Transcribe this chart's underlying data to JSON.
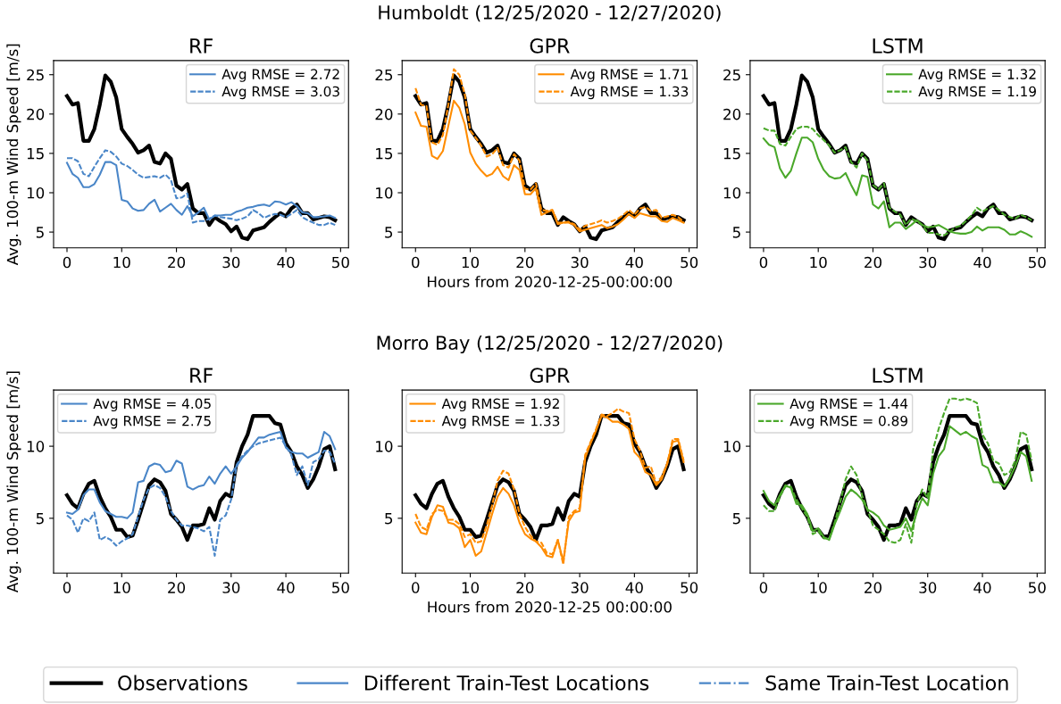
{
  "chart_data": [
    {
      "type": "line",
      "title": "RF",
      "ylabel": "Avg. 100-m Wind Speed [m/s]",
      "legend": "top right",
      "xlim": [
        -2.45,
        51.45
      ],
      "xticks": [
        0,
        10,
        20,
        30,
        40,
        50
      ],
      "ylim": [
        3.0,
        26.8
      ],
      "yticks": [
        5,
        10,
        15,
        20,
        25
      ],
      "x": [
        0,
        1,
        2,
        3,
        4,
        5,
        6,
        7,
        8,
        9,
        10,
        11,
        12,
        13,
        14,
        15,
        16,
        17,
        18,
        19,
        20,
        21,
        22,
        23,
        24,
        25,
        26,
        27,
        28,
        29,
        30,
        31,
        32,
        33,
        34,
        35,
        36,
        37,
        38,
        39,
        40,
        41,
        42,
        43,
        44,
        45,
        46,
        47,
        48,
        49
      ],
      "series": [
        {
          "color": "#000000",
          "line_style": "solid",
          "values": [
            22.3,
            21.2,
            21.4,
            16.6,
            16.6,
            18.1,
            21.2,
            24.9,
            24.1,
            22.1,
            18.1,
            17.1,
            16.2,
            15.1,
            15.4,
            16.0,
            13.9,
            13.7,
            15.0,
            14.3,
            10.9,
            10.4,
            11.1,
            8.0,
            7.4,
            7.4,
            5.9,
            6.9,
            6.4,
            6.0,
            5.1,
            5.7,
            4.3,
            4.1,
            5.2,
            5.4,
            5.6,
            6.3,
            6.9,
            7.4,
            7.0,
            8.0,
            8.5,
            7.4,
            7.4,
            6.6,
            6.8,
            7.0,
            6.9,
            6.5
          ]
        },
        {
          "name": "Avg RMSE = 2.72",
          "color": "#4a86c8",
          "line_style": "solid",
          "values": [
            13.8,
            12.4,
            11.9,
            10.7,
            10.7,
            11.1,
            12.3,
            13.9,
            13.9,
            13.5,
            9.1,
            8.9,
            8.0,
            7.7,
            7.8,
            8.6,
            9.1,
            7.6,
            8.1,
            8.6,
            7.8,
            7.2,
            8.3,
            7.0,
            7.5,
            8.1,
            6.6,
            7.1,
            7.1,
            7.2,
            7.2,
            7.6,
            7.8,
            8.1,
            8.2,
            8.4,
            8.5,
            8.3,
            8.9,
            8.8,
            8.5,
            8.8,
            8.3,
            7.5,
            7.4,
            6.9,
            6.9,
            7.0,
            7.1,
            6.8
          ]
        },
        {
          "name": "Avg RMSE = 3.03",
          "color": "#4a86c8",
          "line_style": "dashed",
          "values": [
            14.4,
            14.4,
            14.0,
            12.4,
            12.1,
            13.3,
            14.4,
            15.4,
            15.2,
            14.6,
            13.7,
            13.4,
            12.9,
            12.3,
            11.9,
            12.0,
            12.1,
            11.9,
            12.3,
            11.6,
            9.3,
            9.4,
            9.9,
            6.2,
            6.4,
            6.4,
            6.7,
            7.1,
            6.9,
            6.8,
            6.7,
            6.5,
            6.7,
            7.0,
            7.8,
            7.4,
            6.8,
            7.1,
            7.3,
            7.2,
            6.9,
            7.3,
            7.8,
            6.9,
            6.5,
            6.2,
            5.9,
            5.9,
            6.2,
            5.9
          ]
        }
      ]
    },
    {
      "type": "line",
      "title": "GPR",
      "subtitle": "Humboldt (12/25/2020 - 12/27/2020)",
      "xlabel": "Hours from 2020-12-25-00:00:00",
      "legend": "top right",
      "xlim": [
        -2.45,
        51.45
      ],
      "xticks": [
        0,
        10,
        20,
        30,
        40,
        50
      ],
      "ylim": [
        3.0,
        26.8
      ],
      "yticks": [
        5,
        10,
        15,
        20,
        25
      ],
      "x": [
        0,
        1,
        2,
        3,
        4,
        5,
        6,
        7,
        8,
        9,
        10,
        11,
        12,
        13,
        14,
        15,
        16,
        17,
        18,
        19,
        20,
        21,
        22,
        23,
        24,
        25,
        26,
        27,
        28,
        29,
        30,
        31,
        32,
        33,
        34,
        35,
        36,
        37,
        38,
        39,
        40,
        41,
        42,
        43,
        44,
        45,
        46,
        47,
        48,
        49
      ],
      "series": [
        {
          "color": "#000000",
          "line_style": "solid",
          "values": [
            22.3,
            21.2,
            21.4,
            16.6,
            16.6,
            18.1,
            21.2,
            24.9,
            24.1,
            22.1,
            18.1,
            17.1,
            16.2,
            15.1,
            15.4,
            16.0,
            13.9,
            13.7,
            15.0,
            14.3,
            10.9,
            10.4,
            11.1,
            8.0,
            7.4,
            7.4,
            5.9,
            6.9,
            6.4,
            6.0,
            5.1,
            5.7,
            4.3,
            4.1,
            5.2,
            5.4,
            5.6,
            6.3,
            6.9,
            7.4,
            7.0,
            8.0,
            8.5,
            7.4,
            7.4,
            6.6,
            6.8,
            7.0,
            6.9,
            6.5
          ]
        },
        {
          "name": "Avg RMSE = 1.71",
          "color": "#ff8c00",
          "line_style": "solid",
          "values": [
            20.2,
            18.5,
            18.4,
            14.7,
            14.3,
            15.3,
            18.5,
            21.7,
            20.8,
            18.7,
            15.1,
            13.7,
            12.8,
            12.1,
            12.4,
            13.3,
            12.1,
            11.6,
            13.5,
            12.9,
            9.8,
            9.8,
            10.6,
            7.2,
            7.5,
            7.8,
            6.0,
            6.2,
            6.2,
            5.9,
            5.1,
            5.3,
            5.5,
            5.7,
            5.9,
            5.5,
            5.7,
            6.0,
            6.6,
            7.3,
            6.8,
            7.4,
            7.2,
            7.0,
            7.0,
            6.4,
            6.3,
            6.8,
            6.5,
            6.2
          ]
        },
        {
          "name": "Avg RMSE = 1.33",
          "color": "#ff8c00",
          "line_style": "dashed",
          "values": [
            23.3,
            21.2,
            21.0,
            16.4,
            16.1,
            17.3,
            21.2,
            25.7,
            25.0,
            22.5,
            17.9,
            17.0,
            16.0,
            14.6,
            14.9,
            15.7,
            13.5,
            13.2,
            14.9,
            14.1,
            10.5,
            10.4,
            11.2,
            7.8,
            7.7,
            7.8,
            6.2,
            6.2,
            6.3,
            6.0,
            5.3,
            5.8,
            6.0,
            6.2,
            6.5,
            6.2,
            6.4,
            6.7,
            7.2,
            7.8,
            7.2,
            8.0,
            8.2,
            7.7,
            7.8,
            6.8,
            7.0,
            7.2,
            6.9,
            6.3
          ]
        }
      ]
    },
    {
      "type": "line",
      "title": "LSTM",
      "legend": "top right",
      "xlim": [
        -2.45,
        51.45
      ],
      "xticks": [
        0,
        10,
        20,
        30,
        40,
        50
      ],
      "ylim": [
        3.0,
        26.8
      ],
      "yticks": [
        5,
        10,
        15,
        20,
        25
      ],
      "x": [
        0,
        1,
        2,
        3,
        4,
        5,
        6,
        7,
        8,
        9,
        10,
        11,
        12,
        13,
        14,
        15,
        16,
        17,
        18,
        19,
        20,
        21,
        22,
        23,
        24,
        25,
        26,
        27,
        28,
        29,
        30,
        31,
        32,
        33,
        34,
        35,
        36,
        37,
        38,
        39,
        40,
        41,
        42,
        43,
        44,
        45,
        46,
        47,
        48,
        49
      ],
      "series": [
        {
          "color": "#000000",
          "line_style": "solid",
          "values": [
            22.3,
            21.2,
            21.4,
            16.6,
            16.6,
            18.1,
            21.2,
            24.9,
            24.1,
            22.1,
            18.1,
            17.1,
            16.2,
            15.1,
            15.4,
            16.0,
            13.9,
            13.7,
            15.0,
            14.3,
            10.9,
            10.4,
            11.1,
            8.0,
            7.4,
            7.4,
            5.9,
            6.9,
            6.4,
            6.0,
            5.1,
            5.7,
            4.3,
            4.1,
            5.2,
            5.4,
            5.6,
            6.3,
            6.9,
            7.4,
            7.0,
            8.0,
            8.5,
            7.4,
            7.4,
            6.6,
            6.8,
            7.0,
            6.9,
            6.5
          ]
        },
        {
          "name": "Avg RMSE = 1.32",
          "color": "#4aa82a",
          "line_style": "solid",
          "values": [
            16.9,
            16.1,
            15.8,
            13.1,
            11.9,
            12.8,
            15.0,
            17.0,
            17.0,
            16.4,
            14.3,
            12.9,
            12.1,
            11.8,
            11.9,
            12.5,
            11.0,
            9.7,
            12.2,
            12.0,
            8.5,
            8.0,
            8.9,
            5.6,
            6.2,
            6.2,
            5.4,
            5.9,
            6.5,
            5.9,
            5.6,
            5.7,
            5.9,
            5.5,
            5.1,
            4.9,
            4.8,
            4.8,
            5.0,
            5.7,
            5.2,
            5.6,
            5.6,
            5.6,
            5.3,
            4.7,
            4.7,
            5.1,
            4.8,
            4.4
          ]
        },
        {
          "name": "Avg RMSE = 1.19",
          "color": "#4aa82a",
          "line_style": "dashed",
          "values": [
            18.2,
            17.9,
            17.9,
            16.2,
            16.0,
            17.1,
            18.1,
            18.4,
            18.4,
            18.1,
            17.3,
            16.7,
            16.0,
            15.1,
            15.4,
            15.8,
            13.9,
            13.2,
            15.0,
            14.1,
            11.0,
            10.4,
            11.2,
            8.1,
            7.6,
            7.2,
            5.9,
            6.7,
            6.4,
            5.9,
            4.9,
            4.9,
            4.7,
            4.6,
            5.0,
            5.6,
            5.8,
            6.4,
            7.1,
            8.1,
            7.6,
            8.0,
            8.3,
            7.8,
            7.2,
            6.9,
            6.7,
            7.2,
            6.9,
            6.5
          ]
        }
      ]
    },
    {
      "type": "line",
      "title": "RF",
      "ylabel": "Avg. 100-m Wind Speed [m/s]",
      "legend": "top left",
      "xlim": [
        -2.45,
        51.45
      ],
      "xticks": [
        0,
        10,
        20,
        30,
        40,
        50
      ],
      "ylim": [
        1.2,
        13.9
      ],
      "yticks": [
        5,
        10
      ],
      "x": [
        0,
        1,
        2,
        3,
        4,
        5,
        6,
        7,
        8,
        9,
        10,
        11,
        12,
        13,
        14,
        15,
        16,
        17,
        18,
        19,
        20,
        21,
        22,
        23,
        24,
        25,
        26,
        27,
        28,
        29,
        30,
        31,
        32,
        33,
        34,
        35,
        36,
        37,
        38,
        39,
        40,
        41,
        42,
        43,
        44,
        45,
        46,
        47,
        48,
        49
      ],
      "series": [
        {
          "color": "#000000",
          "line_style": "solid",
          "values": [
            6.6,
            6.0,
            5.7,
            6.7,
            7.4,
            7.6,
            6.5,
            5.7,
            5.1,
            4.2,
            4.2,
            3.7,
            3.8,
            4.9,
            6.1,
            7.3,
            7.7,
            7.5,
            6.9,
            5.3,
            4.9,
            4.4,
            3.5,
            4.5,
            4.5,
            4.6,
            5.7,
            4.9,
            6.2,
            6.7,
            6.5,
            8.9,
            10.0,
            10.8,
            12.1,
            12.1,
            12.1,
            12.1,
            11.6,
            11.5,
            10.2,
            9.6,
            8.6,
            8.0,
            7.1,
            7.7,
            8.6,
            9.8,
            10.0,
            8.4
          ]
        },
        {
          "name": "Avg RMSE = 4.05",
          "color": "#4a86c8",
          "line_style": "solid",
          "values": [
            5.4,
            5.3,
            5.6,
            6.6,
            7.0,
            7.0,
            6.1,
            5.5,
            5.3,
            5.1,
            5.1,
            5.0,
            5.4,
            7.5,
            7.6,
            8.6,
            8.8,
            8.7,
            8.2,
            8.3,
            9.0,
            8.8,
            7.2,
            7.0,
            7.2,
            7.3,
            7.9,
            7.4,
            8.1,
            8.6,
            8.1,
            8.6,
            9.2,
            9.6,
            10.1,
            10.6,
            10.6,
            10.8,
            10.9,
            11.0,
            9.9,
            9.6,
            9.5,
            9.5,
            9.2,
            9.4,
            9.6,
            11.0,
            10.7,
            9.8
          ]
        },
        {
          "name": "Avg RMSE = 2.75",
          "color": "#4a86c8",
          "line_style": "dashed",
          "values": [
            5.2,
            4.9,
            4.0,
            5.0,
            4.8,
            5.4,
            3.5,
            3.7,
            3.5,
            3.1,
            3.4,
            3.6,
            3.9,
            5.1,
            6.3,
            7.1,
            7.3,
            7.1,
            6.5,
            5.5,
            4.9,
            4.5,
            4.5,
            4.4,
            4.3,
            4.1,
            4.4,
            2.4,
            4.9,
            5.2,
            6.3,
            8.7,
            9.3,
            9.7,
            10.0,
            10.2,
            10.3,
            10.4,
            10.5,
            10.6,
            10.0,
            9.4,
            8.0,
            8.6,
            7.3,
            8.9,
            9.1,
            9.7,
            9.6,
            8.8
          ]
        }
      ]
    },
    {
      "type": "line",
      "title": "GPR",
      "subtitle": "Morro Bay (12/25/2020 - 12/27/2020)",
      "xlabel": "Hours from 2020-12-25 00:00:00",
      "legend": "top left",
      "xlim": [
        -2.45,
        51.45
      ],
      "xticks": [
        0,
        10,
        20,
        30,
        40,
        50
      ],
      "ylim": [
        1.2,
        13.9
      ],
      "yticks": [
        5,
        10
      ],
      "x": [
        0,
        1,
        2,
        3,
        4,
        5,
        6,
        7,
        8,
        9,
        10,
        11,
        12,
        13,
        14,
        15,
        16,
        17,
        18,
        19,
        20,
        21,
        22,
        23,
        24,
        25,
        26,
        27,
        28,
        29,
        30,
        31,
        32,
        33,
        34,
        35,
        36,
        37,
        38,
        39,
        40,
        41,
        42,
        43,
        44,
        45,
        46,
        47,
        48,
        49
      ],
      "series": [
        {
          "color": "#000000",
          "line_style": "solid",
          "values": [
            6.6,
            6.0,
            5.7,
            6.7,
            7.4,
            7.6,
            6.5,
            5.7,
            5.1,
            4.2,
            4.2,
            3.7,
            3.8,
            4.9,
            6.1,
            7.3,
            7.7,
            7.5,
            6.9,
            5.3,
            4.9,
            4.4,
            3.5,
            4.5,
            4.5,
            4.6,
            5.7,
            4.9,
            6.2,
            6.7,
            6.5,
            8.9,
            10.0,
            10.8,
            12.1,
            12.1,
            12.1,
            12.1,
            11.6,
            11.5,
            10.2,
            9.6,
            8.6,
            8.0,
            7.1,
            7.7,
            8.6,
            9.8,
            10.0,
            8.4
          ]
        },
        {
          "name": "Avg RMSE = 1.92",
          "color": "#ff8c00",
          "line_style": "solid",
          "values": [
            4.7,
            4.0,
            3.9,
            5.1,
            5.9,
            5.8,
            4.7,
            4.6,
            4.3,
            3.0,
            3.5,
            2.4,
            2.7,
            4.0,
            5.3,
            6.5,
            7.1,
            6.7,
            5.9,
            4.7,
            3.9,
            3.6,
            3.4,
            3.0,
            2.4,
            2.3,
            3.5,
            2.0,
            4.8,
            5.4,
            5.5,
            9.2,
            10.2,
            11.1,
            12.1,
            12.0,
            11.7,
            11.7,
            11.5,
            11.2,
            9.6,
            9.2,
            8.2,
            8.0,
            7.3,
            7.7,
            8.8,
            10.3,
            10.4,
            8.9
          ]
        },
        {
          "name": "Avg RMSE = 1.33",
          "color": "#ff8c00",
          "line_style": "dashed",
          "values": [
            5.3,
            4.4,
            4.2,
            5.3,
            5.6,
            5.5,
            4.9,
            4.9,
            4.6,
            3.7,
            3.9,
            3.3,
            3.4,
            4.5,
            5.9,
            7.6,
            8.3,
            8.1,
            7.0,
            5.3,
            4.4,
            3.8,
            3.4,
            3.3,
            2.6,
            2.5,
            3.5,
            1.8,
            5.1,
            5.5,
            5.7,
            9.4,
            10.3,
            11.2,
            12.2,
            12.1,
            12.3,
            12.6,
            12.4,
            12.3,
            10.5,
            9.7,
            8.5,
            8.6,
            7.4,
            7.9,
            8.8,
            10.5,
            10.5,
            9.0
          ]
        }
      ]
    },
    {
      "type": "line",
      "title": "LSTM",
      "legend": "top left",
      "xlim": [
        -2.45,
        51.45
      ],
      "xticks": [
        0,
        10,
        20,
        30,
        40,
        50
      ],
      "ylim": [
        1.2,
        13.9
      ],
      "yticks": [
        5,
        10
      ],
      "x": [
        0,
        1,
        2,
        3,
        4,
        5,
        6,
        7,
        8,
        9,
        10,
        11,
        12,
        13,
        14,
        15,
        16,
        17,
        18,
        19,
        20,
        21,
        22,
        23,
        24,
        25,
        26,
        27,
        28,
        29,
        30,
        31,
        32,
        33,
        34,
        35,
        36,
        37,
        38,
        39,
        40,
        41,
        42,
        43,
        44,
        45,
        46,
        47,
        48,
        49
      ],
      "series": [
        {
          "color": "#000000",
          "line_style": "solid",
          "values": [
            6.6,
            6.0,
            5.7,
            6.7,
            7.4,
            7.6,
            6.5,
            5.7,
            5.1,
            4.2,
            4.2,
            3.7,
            3.8,
            4.9,
            6.1,
            7.3,
            7.7,
            7.5,
            6.9,
            5.3,
            4.9,
            4.4,
            3.5,
            4.5,
            4.5,
            4.6,
            5.7,
            4.9,
            6.2,
            6.7,
            6.5,
            8.9,
            10.0,
            10.8,
            12.1,
            12.1,
            12.1,
            12.1,
            11.6,
            11.5,
            10.2,
            9.6,
            8.6,
            8.0,
            7.1,
            7.7,
            8.6,
            9.8,
            10.0,
            8.4
          ]
        },
        {
          "name": "Avg RMSE = 1.44",
          "color": "#4aa82a",
          "line_style": "solid",
          "values": [
            6.9,
            6.2,
            5.9,
            6.6,
            7.3,
            7.1,
            6.0,
            5.9,
            5.3,
            4.1,
            4.3,
            3.7,
            3.5,
            4.6,
            5.5,
            6.5,
            7.0,
            6.7,
            6.3,
            5.6,
            5.4,
            5.1,
            4.5,
            4.2,
            4.3,
            4.4,
            5.0,
            4.1,
            5.4,
            6.4,
            5.9,
            8.1,
            9.3,
            9.8,
            11.4,
            11.1,
            10.8,
            11.0,
            10.7,
            10.5,
            8.7,
            8.5,
            7.5,
            7.5,
            7.2,
            7.8,
            8.6,
            9.6,
            9.3,
            7.6
          ]
        },
        {
          "name": "Avg RMSE = 0.89",
          "color": "#4aa82a",
          "line_style": "dashed",
          "values": [
            5.9,
            5.5,
            5.5,
            6.5,
            7.2,
            7.2,
            6.3,
            5.7,
            5.1,
            3.9,
            4.1,
            3.6,
            3.6,
            4.7,
            6.1,
            7.7,
            8.6,
            8.0,
            6.6,
            5.6,
            4.5,
            4.2,
            3.9,
            3.4,
            3.3,
            3.5,
            4.6,
            3.3,
            6.0,
            7.0,
            6.4,
            9.8,
            11.2,
            12.3,
            13.3,
            13.3,
            13.2,
            13.3,
            13.2,
            13.0,
            10.8,
            10.2,
            9.0,
            8.8,
            8.0,
            8.2,
            9.0,
            11.0,
            10.8,
            9.0
          ]
        }
      ]
    },
    {
      "type": "other",
      "annotations": [
        "Observations",
        "Different Train-Test Locations",
        "Same Train-Test Location"
      ],
      "colors": [
        "#000000",
        "#4a86c8",
        "#4a86c8"
      ]
    }
  ]
}
